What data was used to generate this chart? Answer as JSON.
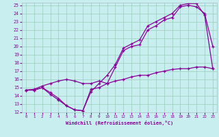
{
  "title": "",
  "xlabel": "Windchill (Refroidissement éolien,°C)",
  "bg_color": "#c8eef0",
  "grid_color": "#99ccbb",
  "line_color": "#880099",
  "xlim": [
    -0.5,
    23.5
  ],
  "ylim": [
    12,
    25.3
  ],
  "xticks": [
    0,
    1,
    2,
    3,
    4,
    5,
    6,
    7,
    8,
    9,
    10,
    11,
    12,
    13,
    14,
    15,
    16,
    17,
    18,
    19,
    20,
    21,
    22,
    23
  ],
  "yticks": [
    12,
    13,
    14,
    15,
    16,
    17,
    18,
    19,
    20,
    21,
    22,
    23,
    24,
    25
  ],
  "series": [
    [
      [
        0,
        14.7
      ],
      [
        1,
        14.7
      ],
      [
        2,
        15.0
      ],
      [
        3,
        14.4
      ],
      [
        4,
        13.7
      ],
      [
        5,
        12.8
      ],
      [
        6,
        12.3
      ],
      [
        7,
        12.2
      ],
      [
        8,
        14.8
      ],
      [
        9,
        15.0
      ],
      [
        10,
        15.5
      ],
      [
        11,
        17.5
      ],
      [
        12,
        19.5
      ],
      [
        13,
        20.0
      ],
      [
        14,
        20.2
      ],
      [
        15,
        22.0
      ],
      [
        16,
        22.5
      ],
      [
        17,
        23.2
      ],
      [
        18,
        23.5
      ],
      [
        19,
        24.8
      ],
      [
        20,
        25.0
      ],
      [
        21,
        24.8
      ],
      [
        22,
        24.0
      ],
      [
        23,
        20.0
      ]
    ],
    [
      [
        0,
        14.7
      ],
      [
        1,
        14.7
      ],
      [
        2,
        15.0
      ],
      [
        3,
        14.2
      ],
      [
        4,
        13.5
      ],
      [
        5,
        12.8
      ],
      [
        6,
        12.3
      ],
      [
        7,
        12.2
      ],
      [
        8,
        14.5
      ],
      [
        9,
        15.5
      ],
      [
        10,
        16.5
      ],
      [
        11,
        17.8
      ],
      [
        12,
        19.8
      ],
      [
        13,
        20.3
      ],
      [
        14,
        20.8
      ],
      [
        15,
        22.5
      ],
      [
        16,
        23.0
      ],
      [
        17,
        23.5
      ],
      [
        18,
        24.0
      ],
      [
        19,
        25.0
      ],
      [
        20,
        25.2
      ],
      [
        21,
        25.2
      ],
      [
        22,
        23.8
      ],
      [
        23,
        17.3
      ]
    ],
    [
      [
        0,
        14.7
      ],
      [
        1,
        14.8
      ],
      [
        2,
        15.2
      ],
      [
        3,
        15.5
      ],
      [
        4,
        15.8
      ],
      [
        5,
        16.0
      ],
      [
        6,
        15.8
      ],
      [
        7,
        15.5
      ],
      [
        8,
        15.5
      ],
      [
        9,
        15.8
      ],
      [
        10,
        15.5
      ],
      [
        11,
        15.8
      ],
      [
        12,
        16.0
      ],
      [
        13,
        16.3
      ],
      [
        14,
        16.5
      ],
      [
        15,
        16.5
      ],
      [
        16,
        16.8
      ],
      [
        17,
        17.0
      ],
      [
        18,
        17.2
      ],
      [
        19,
        17.3
      ],
      [
        20,
        17.3
      ],
      [
        21,
        17.5
      ],
      [
        22,
        17.5
      ],
      [
        23,
        17.3
      ]
    ]
  ]
}
